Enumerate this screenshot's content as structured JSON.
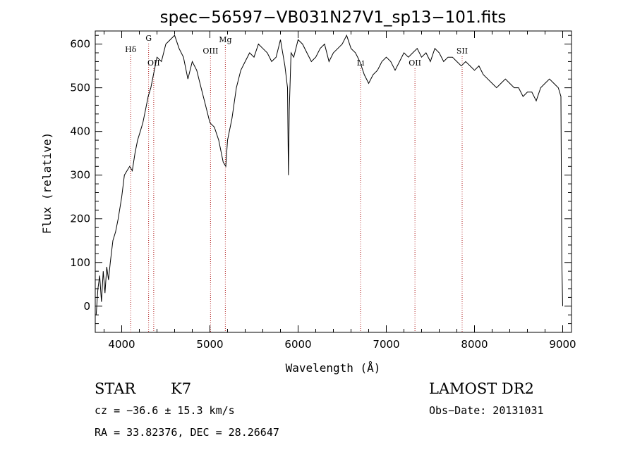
{
  "chart_data": {
    "type": "line",
    "title": "spec−56597−VB031N27V1_sp13−101.fits",
    "xlabel": "Wavelength (Å)",
    "ylabel": "Flux (relative)",
    "xlim": [
      3700,
      9100
    ],
    "ylim": [
      -60,
      630
    ],
    "xticks": [
      4000,
      5000,
      6000,
      7000,
      8000,
      9000
    ],
    "yticks": [
      0,
      100,
      200,
      300,
      400,
      500,
      600
    ],
    "line_color": "#000000",
    "marker_color": "#b22222",
    "series": [
      {
        "x": [
          3710,
          3730,
          3750,
          3770,
          3790,
          3810,
          3830,
          3850,
          3870,
          3900,
          3930,
          3960,
          4000,
          4030,
          4060,
          4090,
          4120,
          4150,
          4180,
          4210,
          4240,
          4270,
          4300,
          4330,
          4360,
          4400,
          4450,
          4500,
          4550,
          4600,
          4650,
          4700,
          4750,
          4800,
          4850,
          4900,
          4950,
          5000,
          5050,
          5100,
          5150,
          5180,
          5200,
          5250,
          5300,
          5350,
          5400,
          5450,
          5500,
          5550,
          5600,
          5650,
          5700,
          5750,
          5800,
          5850,
          5880,
          5890,
          5900,
          5920,
          5950,
          6000,
          6050,
          6100,
          6150,
          6200,
          6250,
          6300,
          6350,
          6400,
          6450,
          6500,
          6550,
          6600,
          6650,
          6700,
          6750,
          6800,
          6850,
          6900,
          6950,
          7000,
          7050,
          7100,
          7150,
          7200,
          7250,
          7300,
          7350,
          7400,
          7450,
          7500,
          7550,
          7600,
          7650,
          7700,
          7750,
          7800,
          7850,
          7900,
          7950,
          8000,
          8050,
          8100,
          8150,
          8200,
          8250,
          8300,
          8350,
          8400,
          8450,
          8500,
          8550,
          8600,
          8650,
          8700,
          8750,
          8800,
          8850,
          8900,
          8950,
          8980,
          8990,
          9000
        ],
        "values": [
          -20,
          40,
          70,
          10,
          80,
          30,
          90,
          60,
          100,
          150,
          170,
          200,
          250,
          300,
          310,
          320,
          310,
          350,
          380,
          400,
          420,
          450,
          480,
          500,
          530,
          570,
          560,
          600,
          610,
          620,
          590,
          570,
          520,
          560,
          540,
          500,
          460,
          420,
          410,
          380,
          330,
          320,
          380,
          430,
          500,
          540,
          560,
          580,
          570,
          600,
          590,
          580,
          560,
          570,
          610,
          550,
          500,
          300,
          450,
          580,
          570,
          610,
          600,
          580,
          560,
          570,
          590,
          600,
          560,
          580,
          590,
          600,
          620,
          590,
          580,
          560,
          530,
          510,
          530,
          540,
          560,
          570,
          560,
          540,
          560,
          580,
          570,
          580,
          590,
          570,
          580,
          560,
          590,
          580,
          560,
          570,
          570,
          560,
          550,
          560,
          550,
          540,
          550,
          530,
          520,
          510,
          500,
          510,
          520,
          510,
          500,
          500,
          480,
          490,
          490,
          470,
          500,
          510,
          520,
          510,
          500,
          480,
          100,
          0
        ]
      }
    ],
    "spectral_lines": [
      {
        "label": "Hδ",
        "x": 4102
      },
      {
        "label": "G",
        "x": 4305
      },
      {
        "label": "OII",
        "x": 4363
      },
      {
        "label": "OIII",
        "x": 5007
      },
      {
        "label": "Mg",
        "x": 5175
      },
      {
        "label": "Li",
        "x": 6708
      },
      {
        "label": "OII",
        "x": 7325
      },
      {
        "label": "SII",
        "x": 7860
      }
    ]
  },
  "info": {
    "class_label": "STAR",
    "subclass": "K7",
    "survey": "LAMOST DR2",
    "cz": "cz = −36.6 ± 15.3 km/s",
    "obs_date": "Obs−Date: 20131031",
    "coords": "RA =  33.82376, DEC =  28.26647"
  }
}
